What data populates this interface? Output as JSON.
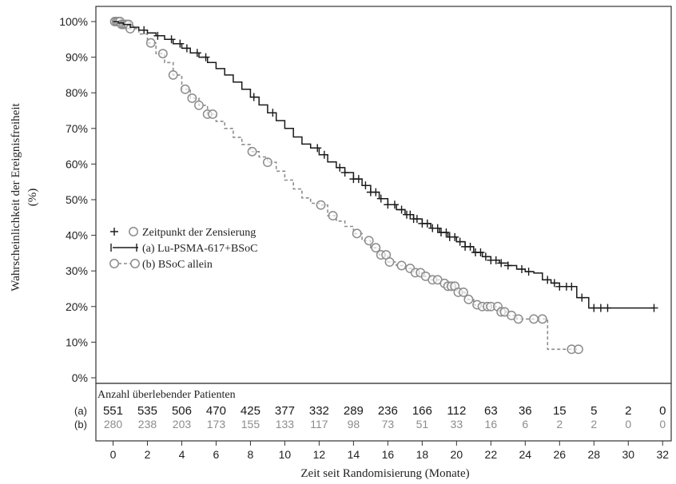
{
  "chart_data": {
    "type": "line",
    "subtype": "kaplan-meier",
    "xlabel": "Zeit seit Randomisierung (Monate)",
    "ylabel": "Wahrscheinlichkeit der Ereignisfreiheit",
    "ylabel_unit": "(%)",
    "xlim": [
      -1,
      32.5
    ],
    "ylim": [
      0,
      100
    ],
    "x_ticks": [
      0,
      2,
      4,
      6,
      8,
      10,
      12,
      14,
      16,
      18,
      20,
      22,
      24,
      26,
      28,
      30,
      32
    ],
    "y_ticks": [
      "0%",
      "10%",
      "20%",
      "30%",
      "40%",
      "50%",
      "60%",
      "70%",
      "80%",
      "90%",
      "100%"
    ],
    "y_tick_values": [
      0,
      10,
      20,
      30,
      40,
      50,
      60,
      70,
      80,
      90,
      100
    ],
    "grid": false,
    "legend": {
      "placement": "center-left",
      "entries": [
        "Zeitpunkt der Zensierung",
        "(a) Lu-PSMA-617+BSoC",
        "(b) BSoC allein"
      ]
    },
    "colors": {
      "a": "#1a1a1a",
      "b": "#8c8c8c",
      "axis": "#333333"
    },
    "series": [
      {
        "name": "(a) Lu-PSMA-617+BSoC",
        "points": [
          [
            0,
            100
          ],
          [
            0.3,
            99.6
          ],
          [
            0.6,
            99.2
          ],
          [
            1,
            98.4
          ],
          [
            1.5,
            97.6
          ],
          [
            2,
            96.8
          ],
          [
            2.5,
            96
          ],
          [
            3,
            95
          ],
          [
            3.5,
            93.8
          ],
          [
            4,
            92.5
          ],
          [
            4.5,
            91.2
          ],
          [
            5,
            90
          ],
          [
            5.5,
            88.5
          ],
          [
            6,
            86.8
          ],
          [
            6.5,
            85
          ],
          [
            7,
            83
          ],
          [
            7.5,
            81
          ],
          [
            8,
            78.8
          ],
          [
            8.5,
            76.6
          ],
          [
            9,
            74.4
          ],
          [
            9.5,
            72.2
          ],
          [
            10,
            70
          ],
          [
            10.5,
            67.6
          ],
          [
            11,
            65.6
          ],
          [
            11.5,
            64.5
          ],
          [
            12,
            62.6
          ],
          [
            12.5,
            60.6
          ],
          [
            13,
            59
          ],
          [
            13.5,
            57.6
          ],
          [
            14,
            55.8
          ],
          [
            14.5,
            54
          ],
          [
            15,
            52.1
          ],
          [
            15.5,
            50.3
          ],
          [
            16,
            48.6
          ],
          [
            16.5,
            47.2
          ],
          [
            17,
            45.8
          ],
          [
            17.5,
            44.6
          ],
          [
            18,
            43.3
          ],
          [
            18.5,
            42
          ],
          [
            19,
            40.8
          ],
          [
            19.5,
            39.5
          ],
          [
            20,
            38.2
          ],
          [
            20.5,
            36.8
          ],
          [
            21,
            35.2
          ],
          [
            21.5,
            34
          ],
          [
            22,
            33
          ],
          [
            22.5,
            32.2
          ],
          [
            23,
            31.5
          ],
          [
            23.5,
            30.5
          ],
          [
            24,
            29.8
          ],
          [
            24.5,
            29.4
          ],
          [
            25,
            27.5
          ],
          [
            25.5,
            26.6
          ],
          [
            26,
            25.6
          ],
          [
            26.8,
            25.6
          ],
          [
            27,
            22.5
          ],
          [
            27.5,
            22.5
          ],
          [
            27.7,
            19.6
          ],
          [
            31.5,
            19.6
          ]
        ],
        "censor_x": [
          1.8,
          2.6,
          3.4,
          3.9,
          4.3,
          4.9,
          5.4,
          8.2,
          9.3,
          11.9,
          12.3,
          13.2,
          13.5,
          14,
          14.3,
          14.7,
          15,
          15.3,
          15.6,
          16,
          16.4,
          16.8,
          17.1,
          17.3,
          17.5,
          17.7,
          18,
          18.3,
          18.6,
          18.9,
          19.1,
          19.4,
          19.6,
          19.9,
          20.2,
          20.5,
          20.8,
          21.1,
          21.4,
          21.7,
          22,
          22.3,
          22.6,
          23,
          23.8,
          24.2,
          25.3,
          25.7,
          26,
          26.4,
          26.7,
          27.3,
          28,
          28.4,
          28.8,
          31.5
        ]
      },
      {
        "name": "(b) BSoC allein",
        "points": [
          [
            0,
            100
          ],
          [
            0.5,
            99.2
          ],
          [
            1,
            98
          ],
          [
            1.5,
            96.5
          ],
          [
            2,
            94
          ],
          [
            2.5,
            91
          ],
          [
            3,
            88.5
          ],
          [
            3.5,
            85
          ],
          [
            4,
            81
          ],
          [
            4.5,
            78.5
          ],
          [
            5,
            76.5
          ],
          [
            5.5,
            74
          ],
          [
            6,
            72
          ],
          [
            6.5,
            70
          ],
          [
            7,
            67.5
          ],
          [
            7.5,
            65.5
          ],
          [
            8,
            63.5
          ],
          [
            8.5,
            62
          ],
          [
            9,
            60.5
          ],
          [
            9.5,
            58
          ],
          [
            10,
            55.5
          ],
          [
            10.5,
            53
          ],
          [
            11,
            50.5
          ],
          [
            11.5,
            49
          ],
          [
            12,
            48.5
          ],
          [
            12.5,
            45.5
          ],
          [
            13,
            44
          ],
          [
            13.5,
            42.5
          ],
          [
            14,
            40.5
          ],
          [
            14.5,
            38.5
          ],
          [
            15,
            36.5
          ],
          [
            15.5,
            34.5
          ],
          [
            16,
            32.5
          ],
          [
            16.5,
            31.5
          ],
          [
            17,
            30.7
          ],
          [
            17.5,
            29.5
          ],
          [
            18,
            28.5
          ],
          [
            18.5,
            27.5
          ],
          [
            19,
            26.5
          ],
          [
            19.5,
            25.7
          ],
          [
            20,
            24
          ],
          [
            20.5,
            22
          ],
          [
            21,
            20.5
          ],
          [
            21.5,
            20
          ],
          [
            22,
            20
          ],
          [
            22.5,
            18.5
          ],
          [
            23,
            17.5
          ],
          [
            23.5,
            16.5
          ],
          [
            24,
            16.5
          ],
          [
            25.2,
            16.5
          ],
          [
            25.3,
            8
          ],
          [
            27.1,
            8
          ]
        ],
        "censor_x": [
          0.1,
          0.2,
          0.3,
          0.4,
          0.5,
          0.6,
          0.7,
          0.8,
          0.9,
          1,
          2.2,
          2.9,
          3.5,
          4.2,
          4.6,
          5,
          5.5,
          5.8,
          8.1,
          9,
          12.1,
          12.8,
          14.2,
          14.9,
          15.3,
          15.6,
          15.9,
          16.1,
          16.8,
          17.3,
          17.6,
          17.9,
          18.2,
          18.6,
          18.9,
          19.3,
          19.5,
          19.7,
          19.9,
          20.1,
          20.4,
          20.7,
          21.2,
          21.5,
          21.8,
          22,
          22.4,
          22.6,
          22.8,
          23.2,
          23.6,
          24.5,
          25,
          26.7,
          27.1
        ]
      }
    ],
    "at_risk": {
      "title": "Anzahl überlebender Patienten",
      "x": [
        0,
        2,
        4,
        6,
        8,
        10,
        12,
        14,
        16,
        18,
        20,
        22,
        24,
        26,
        28,
        30,
        32
      ],
      "rows": [
        {
          "label": "(a)",
          "values": [
            "551",
            "535",
            "506",
            "470",
            "425",
            "377",
            "332",
            "289",
            "236",
            "166",
            "112",
            "63",
            "36",
            "15",
            "5",
            "2",
            "0"
          ]
        },
        {
          "label": "(b)",
          "values": [
            "280",
            "238",
            "203",
            "173",
            "155",
            "133",
            "117",
            "98",
            "73",
            "51",
            "33",
            "16",
            "6",
            "2",
            "2",
            "0",
            "0"
          ]
        }
      ]
    }
  }
}
